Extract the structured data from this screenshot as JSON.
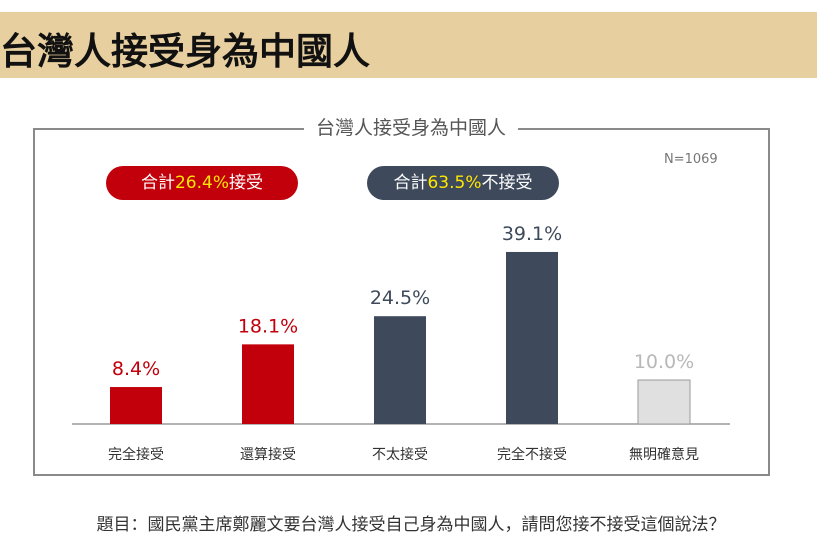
{
  "header": {
    "title": "台灣人接受身為中國人"
  },
  "chart_meta": {
    "sample_size": "N=1069",
    "accept_summary": {
      "prefix": "合計",
      "value": "26.4%",
      "suffix": "接受"
    },
    "reject_summary": {
      "prefix": "合計",
      "value": "63.5%",
      "suffix": "不接受"
    }
  },
  "footer": {
    "question": "題目：國民黨主席鄭麗文要台灣人接受自己身為中國人，請問您接不接受這個說法？"
  },
  "chart_data": {
    "type": "bar",
    "title": "台灣人接受身為中國人",
    "categories": [
      "完全接受",
      "還算接受",
      "不太接受",
      "完全不接受",
      "無明確意見"
    ],
    "values": [
      8.4,
      18.1,
      24.5,
      39.1,
      10.0
    ],
    "value_labels": [
      "8.4%",
      "18.1%",
      "24.5%",
      "39.1%",
      "10.0%"
    ],
    "bar_colors": [
      "#c1000b",
      "#c1000b",
      "#3e4a5c",
      "#3e4a5c",
      "#e0e0e0"
    ],
    "label_colors": [
      "#c1000b",
      "#c1000b",
      "#3e4a5c",
      "#3e4a5c",
      "#b8b8b8"
    ],
    "xlabel": "",
    "ylabel": "",
    "ylim": [
      0,
      45
    ],
    "grid": false,
    "legend": "none"
  }
}
